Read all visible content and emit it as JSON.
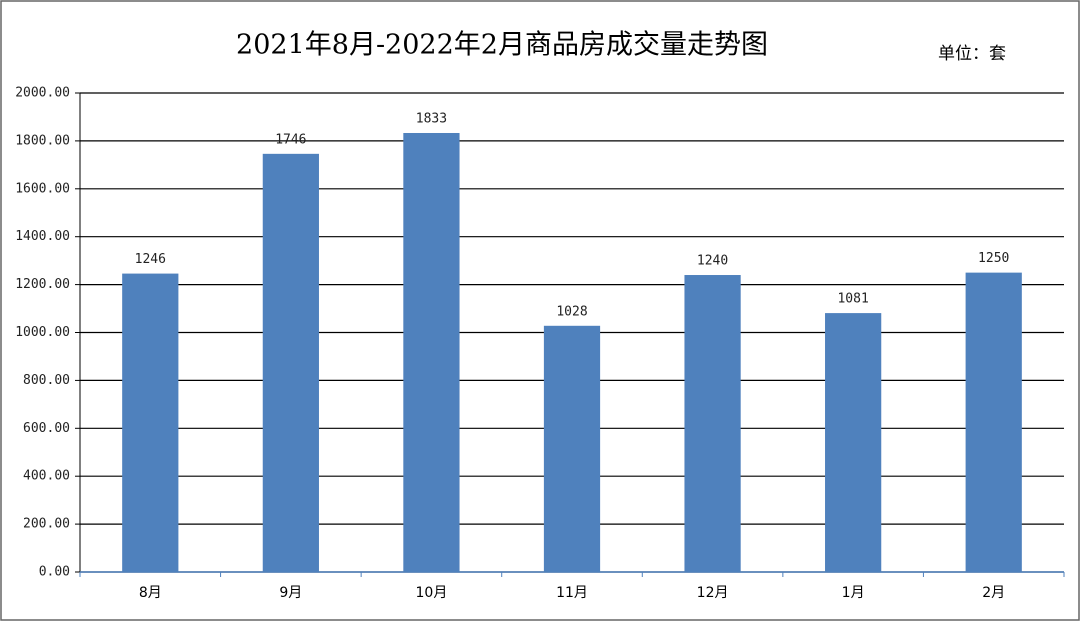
{
  "chart_data": {
    "type": "bar",
    "title": "2021年8月-2022年2月商品房成交量走势图",
    "unit_label": "单位：套",
    "categories": [
      "8月",
      "9月",
      "10月",
      "11月",
      "12月",
      "1月",
      "2月"
    ],
    "values": [
      1246,
      1746,
      1833,
      1028,
      1240,
      1081,
      1250
    ],
    "color": "#4f81bd",
    "ylim": [
      0,
      2000
    ],
    "yticks": [
      {
        "value": 0,
        "label": "0.00"
      },
      {
        "value": 200,
        "label": "200.00"
      },
      {
        "value": 400,
        "label": "400.00"
      },
      {
        "value": 600,
        "label": "600.00"
      },
      {
        "value": 800,
        "label": "800.00"
      },
      {
        "value": 1000,
        "label": "1000.00"
      },
      {
        "value": 1200,
        "label": "1200.00"
      },
      {
        "value": 1400,
        "label": "1400.00"
      },
      {
        "value": 1600,
        "label": "1600.00"
      },
      {
        "value": 1800,
        "label": "1800.00"
      },
      {
        "value": 2000,
        "label": "2000.00"
      }
    ],
    "grid": true
  }
}
